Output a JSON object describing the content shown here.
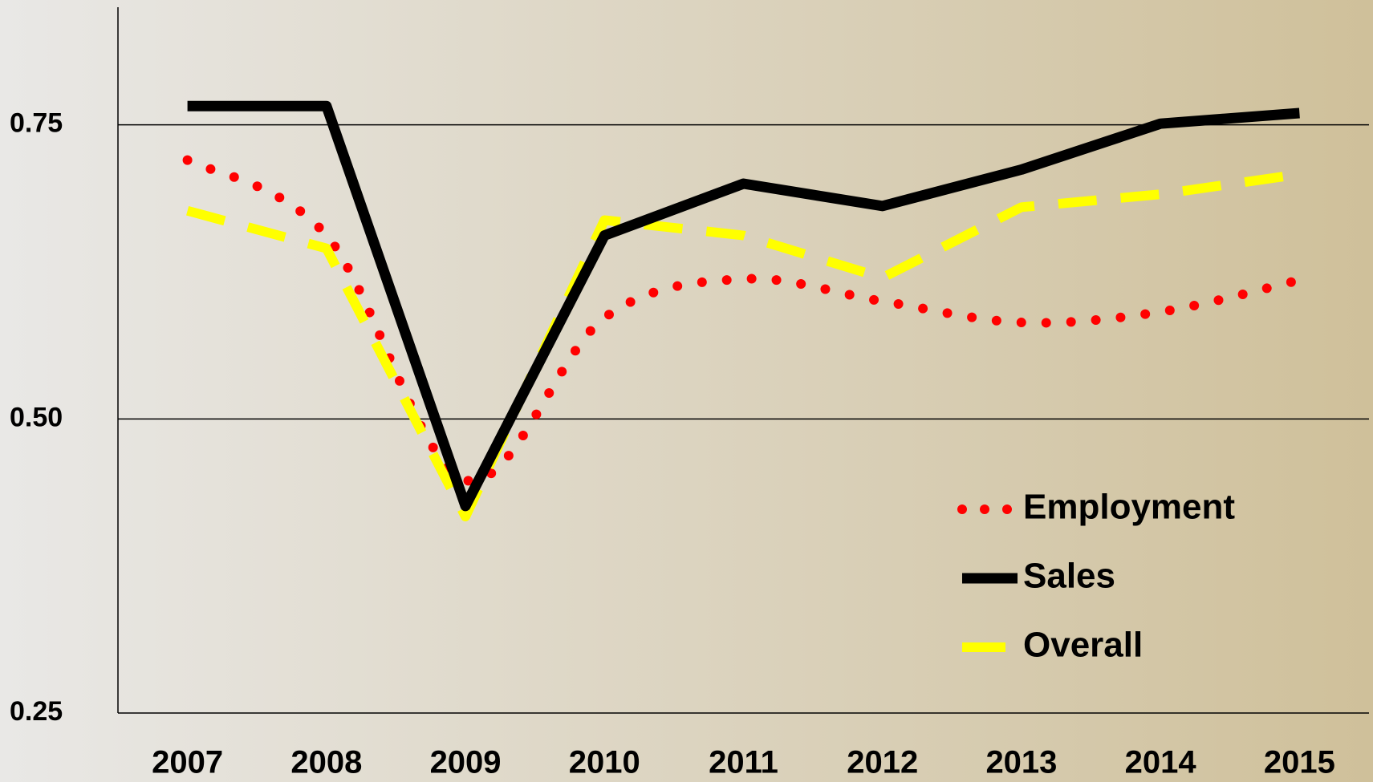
{
  "chart_data": {
    "type": "line",
    "categories": [
      "2007",
      "2008",
      "2009",
      "2010",
      "2011",
      "2012",
      "2013",
      "2014",
      "2015"
    ],
    "series": [
      {
        "name": "Employment",
        "color": "#ff0000",
        "style": "dotted",
        "values": [
          0.72,
          0.656,
          0.448,
          0.586,
          0.619,
          0.6,
          0.582,
          0.591,
          0.618
        ]
      },
      {
        "name": "Sales",
        "color": "#000000",
        "style": "solid",
        "values": [
          0.766,
          0.766,
          0.426,
          0.656,
          0.7,
          0.681,
          0.712,
          0.751,
          0.76
        ]
      },
      {
        "name": "Overall",
        "color": "#ffff00",
        "style": "dashed",
        "values": [
          0.677,
          0.645,
          0.417,
          0.669,
          0.656,
          0.62,
          0.68,
          0.691,
          0.708
        ]
      }
    ],
    "ylim": [
      0.25,
      0.85
    ],
    "yticks": [
      0.25,
      {
        "value": 0.5,
        "label": "0.50"
      },
      0.75
    ],
    "grid": true,
    "legend": "lower right"
  }
}
